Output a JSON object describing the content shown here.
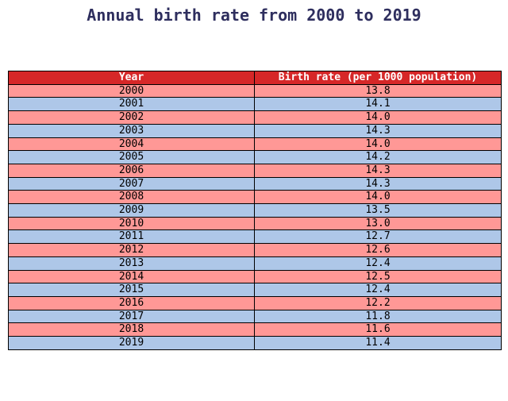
{
  "chart_data": {
    "type": "table",
    "title": "Annual birth rate from 2000 to 2019",
    "columns": [
      "Year",
      "Birth rate (per 1000 population)"
    ],
    "rows": [
      [
        "2000",
        "13.8"
      ],
      [
        "2001",
        "14.1"
      ],
      [
        "2002",
        "14.0"
      ],
      [
        "2003",
        "14.3"
      ],
      [
        "2004",
        "14.0"
      ],
      [
        "2005",
        "14.2"
      ],
      [
        "2006",
        "14.3"
      ],
      [
        "2007",
        "14.3"
      ],
      [
        "2008",
        "14.0"
      ],
      [
        "2009",
        "13.5"
      ],
      [
        "2010",
        "13.0"
      ],
      [
        "2011",
        "12.7"
      ],
      [
        "2012",
        "12.6"
      ],
      [
        "2013",
        "12.4"
      ],
      [
        "2014",
        "12.5"
      ],
      [
        "2015",
        "12.4"
      ],
      [
        "2016",
        "12.2"
      ],
      [
        "2017",
        "11.8"
      ],
      [
        "2018",
        "11.6"
      ],
      [
        "2019",
        "11.4"
      ]
    ]
  },
  "colors": {
    "header_bg": "#d62728",
    "header_text": "#ffffff",
    "row_odd": "#ff9896",
    "row_even": "#aec7e8",
    "title": "#2e2e5e"
  }
}
